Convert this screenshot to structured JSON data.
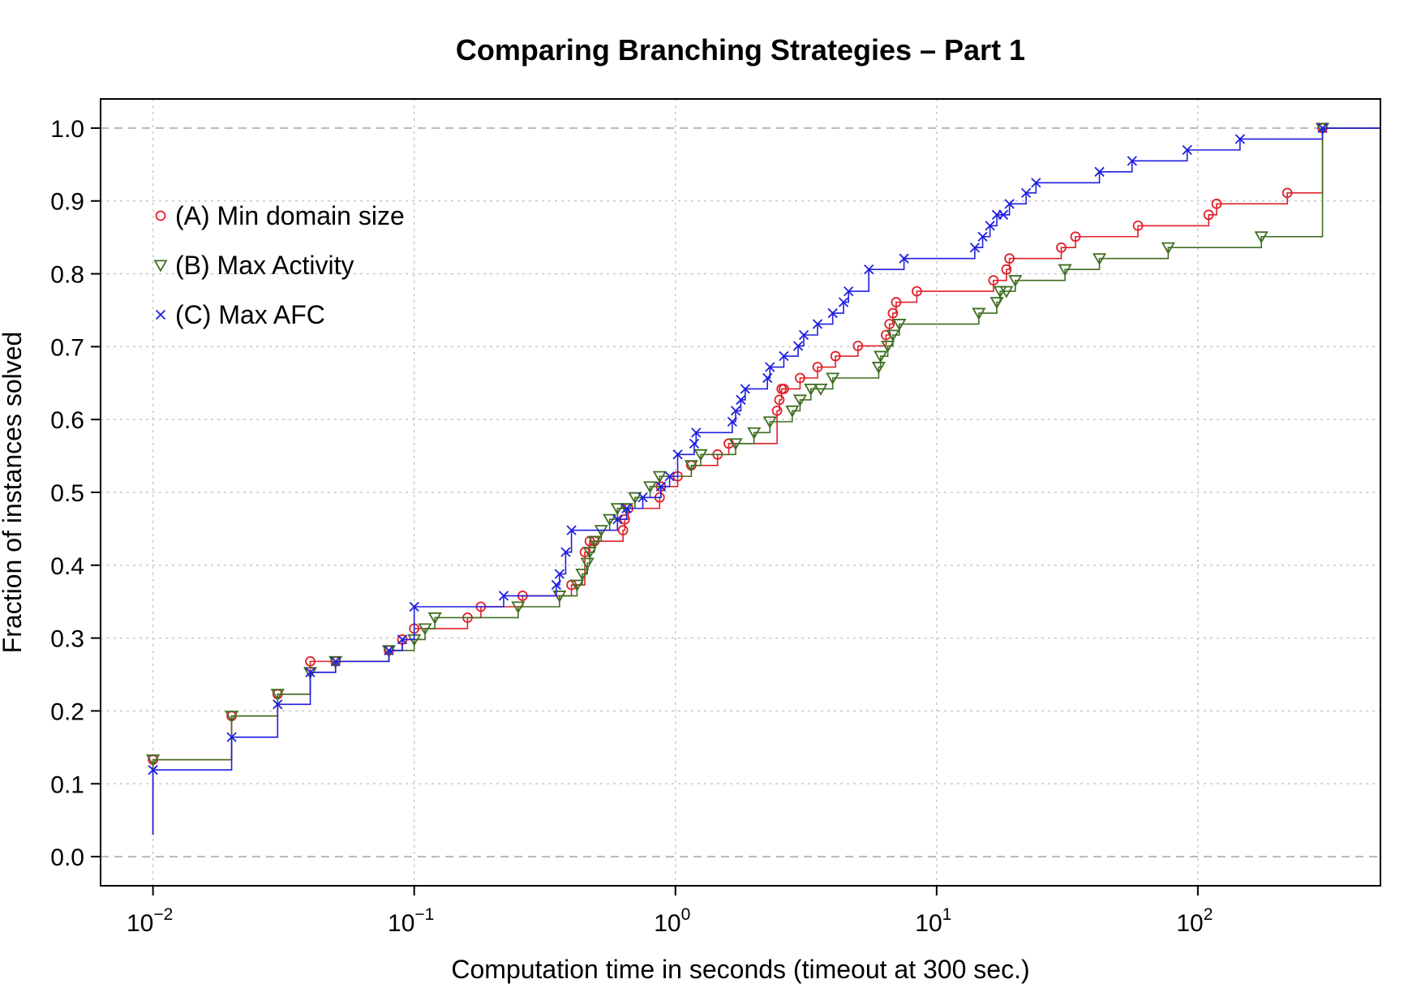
{
  "chart_data": {
    "type": "line",
    "step": true,
    "title": "Comparing Branching Strategies – Part 1",
    "xlabel": "Computation time in seconds (timeout at 300 sec.)",
    "ylabel": "Fraction of instances solved",
    "xscale": "log",
    "xlim": [
      0.0063,
      500
    ],
    "ylim": [
      -0.04,
      1.04
    ],
    "x_ticks": [
      {
        "base": "10",
        "exp": "−2",
        "value": 0.01
      },
      {
        "base": "10",
        "exp": "−1",
        "value": 0.1
      },
      {
        "base": "10",
        "exp": "0",
        "value": 1
      },
      {
        "base": "10",
        "exp": "1",
        "value": 10
      },
      {
        "base": "10",
        "exp": "2",
        "value": 100
      }
    ],
    "y_ticks": [
      "0.0",
      "0.1",
      "0.2",
      "0.3",
      "0.4",
      "0.5",
      "0.6",
      "0.7",
      "0.8",
      "0.9",
      "1.0"
    ],
    "grid": true,
    "legend_position": "top-left",
    "series": [
      {
        "name": "(A) Min domain size",
        "marker": "circle",
        "color": "#e0202a",
        "x": [
          0.01,
          0.02,
          0.03,
          0.04,
          0.05,
          0.08,
          0.09,
          0.1,
          0.16,
          0.18,
          0.26,
          0.4,
          0.45,
          0.47,
          0.49,
          0.63,
          0.64,
          0.66,
          0.87,
          0.88,
          1.02,
          1.15,
          1.45,
          1.6,
          2.45,
          2.5,
          2.55,
          2.6,
          3.0,
          3.5,
          4.1,
          5.0,
          6.4,
          6.6,
          6.8,
          7.0,
          8.4,
          16.5,
          18.5,
          19.0,
          30.0,
          34.0,
          59.0,
          110.0,
          118.0,
          220.0,
          300.0
        ],
        "y": [
          0.133,
          0.193,
          0.223,
          0.268,
          0.268,
          0.283,
          0.298,
          0.313,
          0.328,
          0.343,
          0.358,
          0.373,
          0.418,
          0.433,
          0.433,
          0.448,
          0.463,
          0.478,
          0.493,
          0.508,
          0.522,
          0.537,
          0.552,
          0.567,
          0.612,
          0.627,
          0.642,
          0.642,
          0.657,
          0.672,
          0.687,
          0.701,
          0.716,
          0.731,
          0.746,
          0.761,
          0.776,
          0.791,
          0.806,
          0.821,
          0.836,
          0.851,
          0.866,
          0.881,
          0.896,
          0.911,
          1.0
        ]
      },
      {
        "name": "(B) Max Activity",
        "marker": "triangle-down",
        "color": "#3e6e22",
        "x": [
          0.01,
          0.02,
          0.03,
          0.04,
          0.05,
          0.08,
          0.1,
          0.11,
          0.12,
          0.25,
          0.36,
          0.42,
          0.44,
          0.46,
          0.47,
          0.49,
          0.52,
          0.56,
          0.6,
          0.65,
          0.7,
          0.8,
          0.87,
          1.15,
          1.25,
          1.7,
          2.0,
          2.3,
          2.8,
          3.0,
          3.3,
          3.6,
          4.0,
          6.0,
          6.1,
          6.5,
          6.8,
          7.2,
          14.5,
          17.0,
          17.5,
          18.5,
          20.0,
          31.0,
          42.0,
          77.0,
          175.0,
          300.0
        ],
        "y": [
          0.133,
          0.193,
          0.223,
          0.253,
          0.268,
          0.283,
          0.298,
          0.313,
          0.328,
          0.343,
          0.358,
          0.373,
          0.388,
          0.403,
          0.418,
          0.433,
          0.448,
          0.463,
          0.478,
          0.478,
          0.493,
          0.508,
          0.522,
          0.537,
          0.552,
          0.567,
          0.582,
          0.597,
          0.612,
          0.627,
          0.642,
          0.642,
          0.657,
          0.672,
          0.687,
          0.701,
          0.716,
          0.731,
          0.746,
          0.761,
          0.776,
          0.776,
          0.791,
          0.806,
          0.821,
          0.836,
          0.851,
          1.0
        ]
      },
      {
        "name": "(C) Max AFC",
        "marker": "x",
        "color": "#1f1fe0",
        "x": [
          0.01,
          0.02,
          0.03,
          0.04,
          0.05,
          0.08,
          0.09,
          0.1,
          0.22,
          0.35,
          0.36,
          0.38,
          0.4,
          0.6,
          0.65,
          0.75,
          0.88,
          0.95,
          1.02,
          1.18,
          1.2,
          1.65,
          1.7,
          1.78,
          1.85,
          2.25,
          2.3,
          2.6,
          2.95,
          3.1,
          3.5,
          4.0,
          4.4,
          4.6,
          5.5,
          7.5,
          14.0,
          15.0,
          16.0,
          17.0,
          18.0,
          19.0,
          22.0,
          24.0,
          42.0,
          56.0,
          91.0,
          145.0,
          300.0
        ],
        "y": [
          0.119,
          0.164,
          0.209,
          0.253,
          0.268,
          0.283,
          0.298,
          0.343,
          0.358,
          0.373,
          0.388,
          0.418,
          0.448,
          0.463,
          0.478,
          0.493,
          0.508,
          0.522,
          0.552,
          0.567,
          0.582,
          0.597,
          0.612,
          0.627,
          0.642,
          0.657,
          0.672,
          0.687,
          0.701,
          0.716,
          0.731,
          0.746,
          0.761,
          0.776,
          0.806,
          0.821,
          0.836,
          0.851,
          0.866,
          0.881,
          0.881,
          0.896,
          0.911,
          0.925,
          0.94,
          0.955,
          0.97,
          0.985,
          1.0
        ]
      }
    ]
  }
}
